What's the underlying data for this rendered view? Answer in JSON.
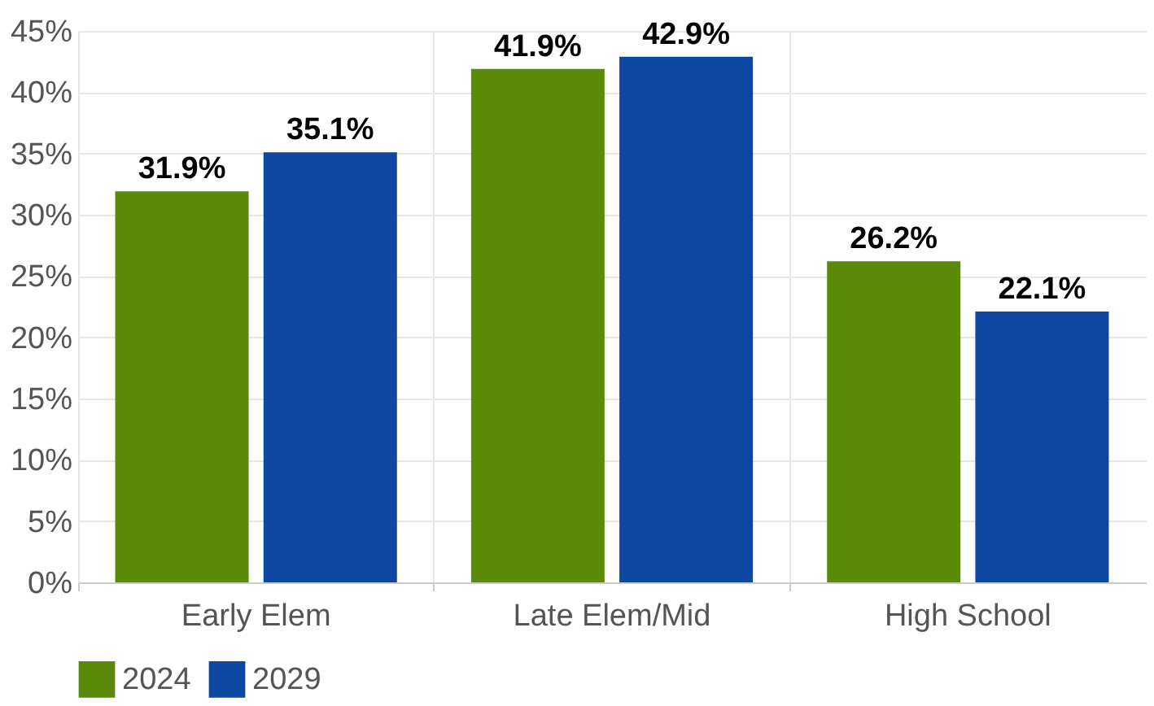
{
  "chart_data": {
    "type": "bar",
    "categories": [
      "Early Elem",
      "Late Elem/Mid",
      "High School"
    ],
    "series": [
      {
        "name": "2024",
        "color": "#5b8a08",
        "values": [
          31.9,
          41.9,
          26.2
        ]
      },
      {
        "name": "2029",
        "color": "#0d47a1",
        "values": [
          35.1,
          42.9,
          22.1
        ]
      }
    ],
    "ylim": [
      0,
      45
    ],
    "yticks": [
      {
        "value": 0,
        "label": "0%"
      },
      {
        "value": 5,
        "label": "5%"
      },
      {
        "value": 10,
        "label": "10%"
      },
      {
        "value": 15,
        "label": "15%"
      },
      {
        "value": 20,
        "label": "20%"
      },
      {
        "value": 25,
        "label": "25%"
      },
      {
        "value": 30,
        "label": "30%"
      },
      {
        "value": 35,
        "label": "35%"
      },
      {
        "value": 40,
        "label": "40%"
      },
      {
        "value": 45,
        "label": "45%"
      }
    ],
    "value_labels": [
      [
        "31.9%",
        "41.9%",
        "26.2%"
      ],
      [
        "35.1%",
        "42.9%",
        "22.1%"
      ]
    ],
    "grid": true,
    "legend": "bottom"
  }
}
